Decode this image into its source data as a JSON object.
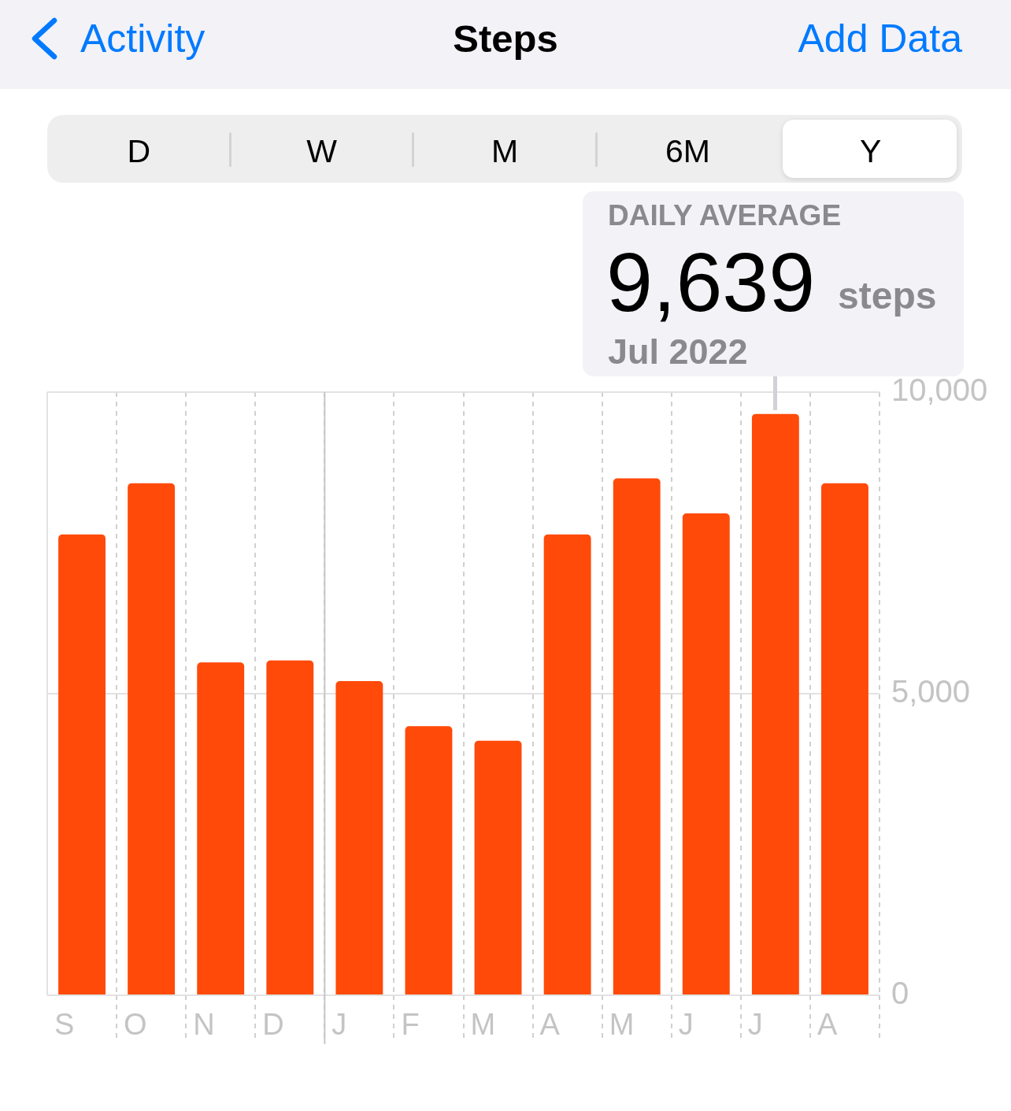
{
  "chart_data": {
    "type": "bar",
    "title": "Steps",
    "categories": [
      "S",
      "O",
      "N",
      "D",
      "J",
      "F",
      "M",
      "A",
      "M",
      "J",
      "J",
      "A"
    ],
    "values": [
      7640,
      8490,
      5520,
      5550,
      5210,
      4460,
      4220,
      7640,
      8570,
      7990,
      9639,
      8490
    ],
    "color": "#ff4a0a",
    "ylim": [
      0,
      10000
    ],
    "yticks": [
      0,
      {
        "value": 5000,
        "label": "5,000"
      },
      {
        "value": 10000,
        "label": "10,000"
      }
    ],
    "grid": true,
    "ref_lines": [
      {
        "axis": "x",
        "value": "J",
        "color": "#c7c7c7",
        "line_style": "solid"
      }
    ],
    "annotations": [
      "Activity",
      "Add Data",
      "D",
      "W",
      "M",
      "6M",
      "Y",
      "DAILY AVERAGE",
      "9,639",
      "steps",
      "Jul 2022"
    ]
  }
}
